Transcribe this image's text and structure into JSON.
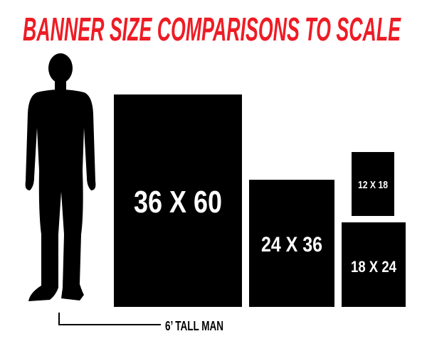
{
  "title": "BANNER SIZE COMPARISONS TO SCALE",
  "colors": {
    "title": "#ee1c25",
    "banner": "#000000",
    "label": "#ffffff"
  },
  "person_label": "6’ TALL MAN",
  "banners": [
    {
      "label": "36 X 60",
      "width_in": 36,
      "height_in": 60
    },
    {
      "label": "24 X 36",
      "width_in": 24,
      "height_in": 36
    },
    {
      "label": "12 X 18",
      "width_in": 12,
      "height_in": 18
    },
    {
      "label": "18 X 24",
      "width_in": 18,
      "height_in": 24
    }
  ]
}
